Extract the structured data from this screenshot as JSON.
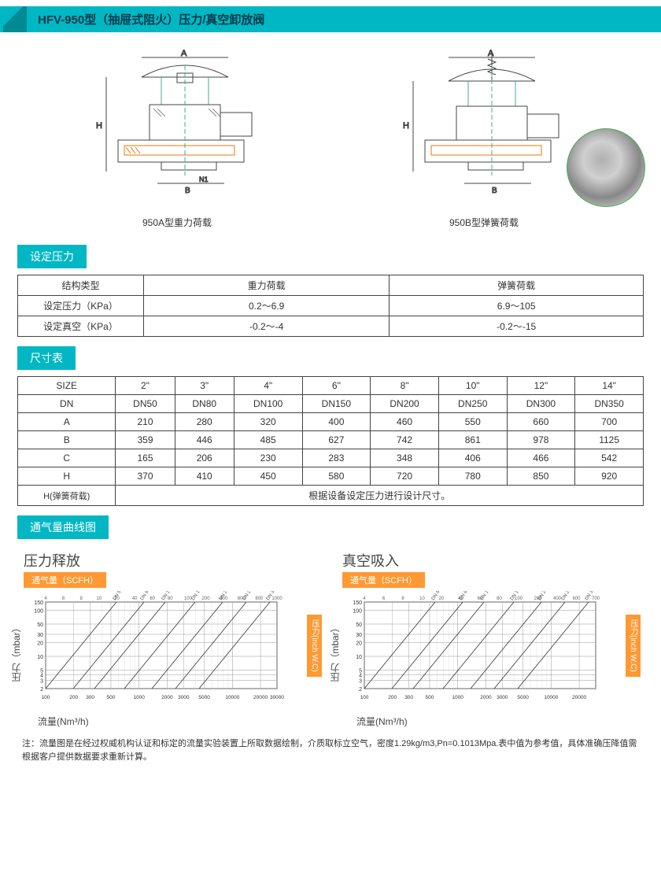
{
  "header": {
    "title": "HFV-950型（抽屉式阻火）压力/真空卸放阀"
  },
  "diagrams": {
    "left_caption": "950A型重力荷载",
    "right_caption": "950B型弹簧荷载",
    "dim_a": "A",
    "dim_b": "B",
    "dim_h": "H",
    "dim_n1": "N1"
  },
  "sections": {
    "pressure": "设定压力",
    "size": "尺寸表",
    "chart": "通气量曲线图"
  },
  "pressure_table": {
    "columns": [
      "结构类型",
      "重力荷载",
      "弹簧荷载"
    ],
    "rows": [
      [
        "设定压力（KPa）",
        "0.2～6.9",
        "6.9～105"
      ],
      [
        "设定真空（KPa）",
        "-0.2～-4",
        "-0.2～-15"
      ]
    ]
  },
  "size_table": {
    "columns": [
      "SIZE",
      "2\"",
      "3\"",
      "4\"",
      "6\"",
      "8\"",
      "10\"",
      "12\"",
      "14\""
    ],
    "rows": [
      [
        "DN",
        "DN50",
        "DN80",
        "DN100",
        "DN150",
        "DN200",
        "DN250",
        "DN300",
        "DN350"
      ],
      [
        "A",
        "210",
        "280",
        "320",
        "400",
        "460",
        "550",
        "660",
        "700"
      ],
      [
        "B",
        "359",
        "446",
        "485",
        "627",
        "742",
        "861",
        "978",
        "1125"
      ],
      [
        "C",
        "165",
        "206",
        "230",
        "283",
        "348",
        "406",
        "466",
        "542"
      ],
      [
        "H",
        "370",
        "410",
        "450",
        "580",
        "720",
        "780",
        "850",
        "920"
      ]
    ],
    "spring_row_label": "H(弹簧荷载)",
    "spring_row_text": "根据设备设定压力进行设计尺寸。"
  },
  "charts": {
    "left": {
      "title": "压力释放",
      "sub": "通气量（SCFH）",
      "y_left": "压力（mbar）",
      "y_right": "压力(inch W.C)",
      "x_label": "流量(Nm³/h)",
      "dn_series": "DN 50/2\"  DN 80/3\"  DN 100/4\"  DN 150/6\"  DN 200/8\"  DN 250/10\"  DN 300/12\"",
      "x_ticks_top": [
        "4",
        "6",
        "8",
        "10",
        "20",
        "40",
        "60",
        "80",
        "100",
        "200",
        "400",
        "600",
        "800",
        "1000"
      ],
      "y_ticks": [
        2,
        3,
        4,
        5,
        10,
        20,
        30,
        50,
        100,
        150
      ],
      "x_ticks_bot": [
        100,
        200,
        300,
        500,
        1000,
        2000,
        3000,
        5000,
        10000,
        20000,
        30000
      ],
      "type": "log-log-lines",
      "grid_color": "#999",
      "line_color": "#333"
    },
    "right": {
      "title": "真空吸入",
      "sub": "通气量（SCFH）",
      "y_left": "压力（mbar）",
      "y_right": "压力(inch W.C)",
      "x_label": "流量(Nm³/h)",
      "dn_series": "DN 50/2\"  DN 80/3\"  DN 100/4\"  DN 150/6\"  DN 200/8\"  DN 250/10\"  DN 300/12\"",
      "x_ticks_top": [
        "4",
        "6",
        "8",
        "10",
        "20",
        "40",
        "60",
        "80",
        "100",
        "200",
        "400",
        "600",
        "700"
      ],
      "y_ticks": [
        2,
        3,
        4,
        5,
        10,
        20,
        30,
        50,
        100,
        150
      ],
      "x_ticks_bot": [
        100,
        200,
        300,
        500,
        1000,
        2000,
        3000,
        5000,
        10000,
        20000
      ],
      "type": "log-log-lines",
      "grid_color": "#999",
      "line_color": "#333"
    }
  },
  "footnote": "注：流量图是在经过权威机构认证和标定的流量实验装置上所取数据绘制，介质取标立空气，密度1.29kg/m3,Pn=0.1013Mpa.表中值为参考值，具体准确压降值需根据客户提供数据要求重新计算。"
}
